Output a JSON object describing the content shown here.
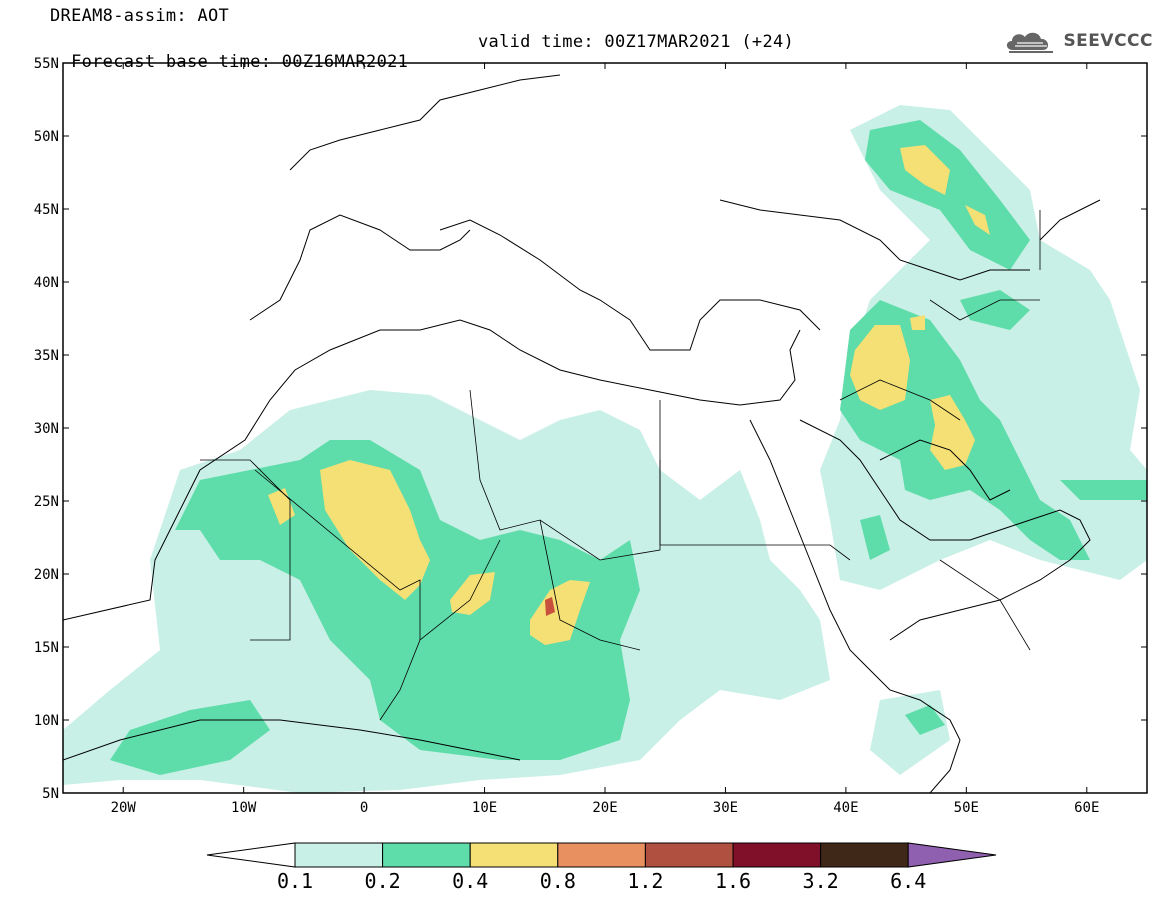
{
  "header": {
    "title_line1": "DREAM8-assim: AOT",
    "base_time": "Forecast base time: 00Z16MAR2021",
    "valid_time": "valid time: 00Z17MAR2021 (+24)",
    "logo_text": "SEEVCCC"
  },
  "map": {
    "extent": {
      "lon": [
        -25,
        65
      ],
      "lat": [
        5,
        55
      ]
    },
    "lat_ticks": [
      "5N",
      "10N",
      "15N",
      "20N",
      "25N",
      "30N",
      "35N",
      "40N",
      "45N",
      "50N",
      "55N"
    ],
    "lon_ticks": [
      "20W",
      "10W",
      "0",
      "10E",
      "20E",
      "30E",
      "40E",
      "50E",
      "60E"
    ]
  },
  "colorbar": {
    "labels": [
      "0.1",
      "0.2",
      "0.4",
      "0.8",
      "1.2",
      "1.6",
      "3.2",
      "6.4"
    ],
    "colors": [
      "#ffffff",
      "#c8f0e6",
      "#5edcaa",
      "#f5e075",
      "#e89060",
      "#b05040",
      "#80102a",
      "#402818",
      "#9060b0"
    ]
  },
  "colors": {
    "c01": "#c8f0e6",
    "c02": "#5edcaa",
    "c04": "#f5e075",
    "c12": "#c8503c"
  }
}
